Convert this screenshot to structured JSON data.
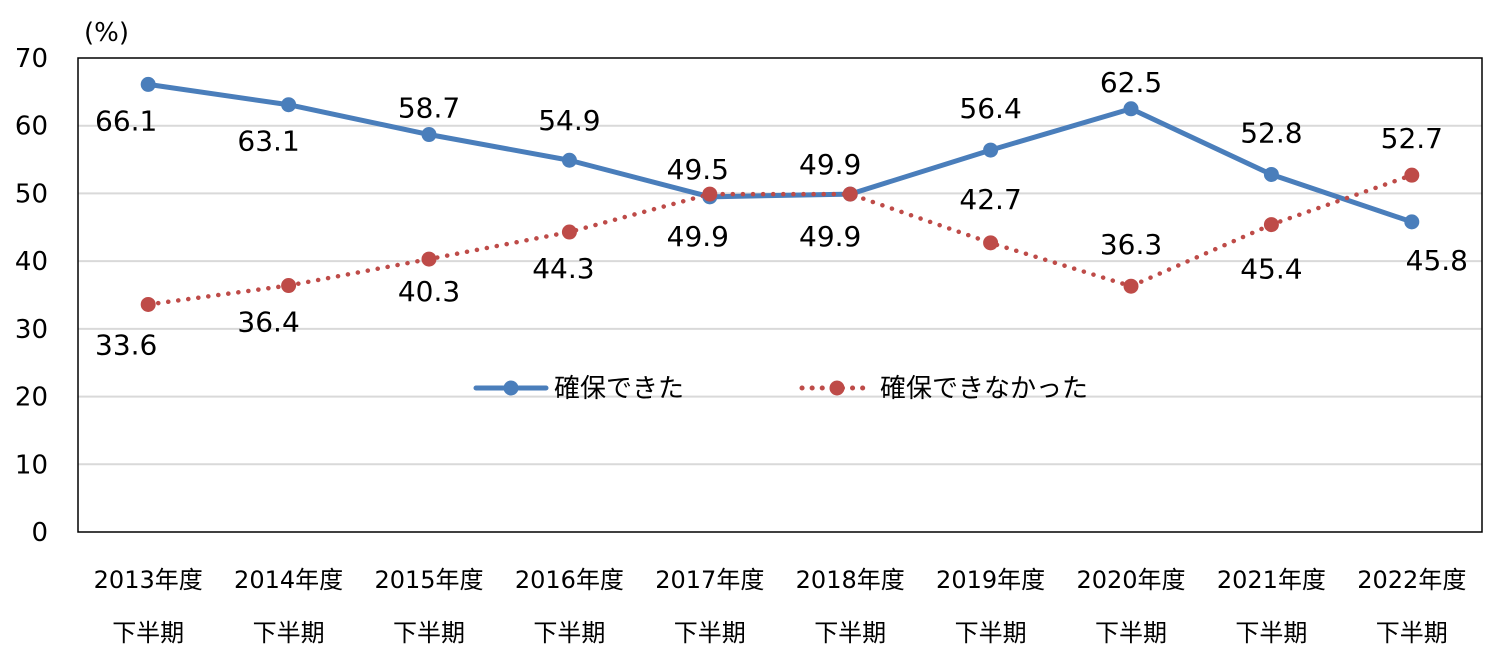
{
  "chart_data": {
    "type": "line",
    "title": "",
    "ylabel": "(%)",
    "xlabel": "",
    "ylim": [
      0,
      70
    ],
    "yticks": [
      0,
      10,
      20,
      30,
      40,
      50,
      60,
      70
    ],
    "grid": true,
    "legend_position": "center",
    "categories": [
      [
        "2013年度",
        "下半期"
      ],
      [
        "2014年度",
        "下半期"
      ],
      [
        "2015年度",
        "下半期"
      ],
      [
        "2016年度",
        "下半期"
      ],
      [
        "2017年度",
        "下半期"
      ],
      [
        "2018年度",
        "下半期"
      ],
      [
        "2019年度",
        "下半期"
      ],
      [
        "2020年度",
        "下半期"
      ],
      [
        "2021年度",
        "下半期"
      ],
      [
        "2022年度",
        "下半期"
      ]
    ],
    "series": [
      {
        "name": "確保できた",
        "color": "#4a7ebb",
        "style": "solid",
        "values": [
          66.1,
          63.1,
          58.7,
          54.9,
          49.5,
          49.9,
          56.4,
          62.5,
          52.8,
          45.8
        ],
        "labels": [
          "66.1",
          "63.1",
          "58.7",
          "54.9",
          "49.5",
          "49.9",
          "56.4",
          "62.5",
          "52.8",
          "45.8"
        ]
      },
      {
        "name": "確保できなかった",
        "color": "#be4b48",
        "style": "dotted",
        "values": [
          33.6,
          36.4,
          40.3,
          44.3,
          49.9,
          49.9,
          42.7,
          36.3,
          45.4,
          52.7
        ],
        "labels": [
          "33.6",
          "36.4",
          "40.3",
          "44.3",
          "49.9",
          "49.9",
          "42.7",
          "36.3",
          "45.4",
          "52.7"
        ]
      }
    ]
  }
}
